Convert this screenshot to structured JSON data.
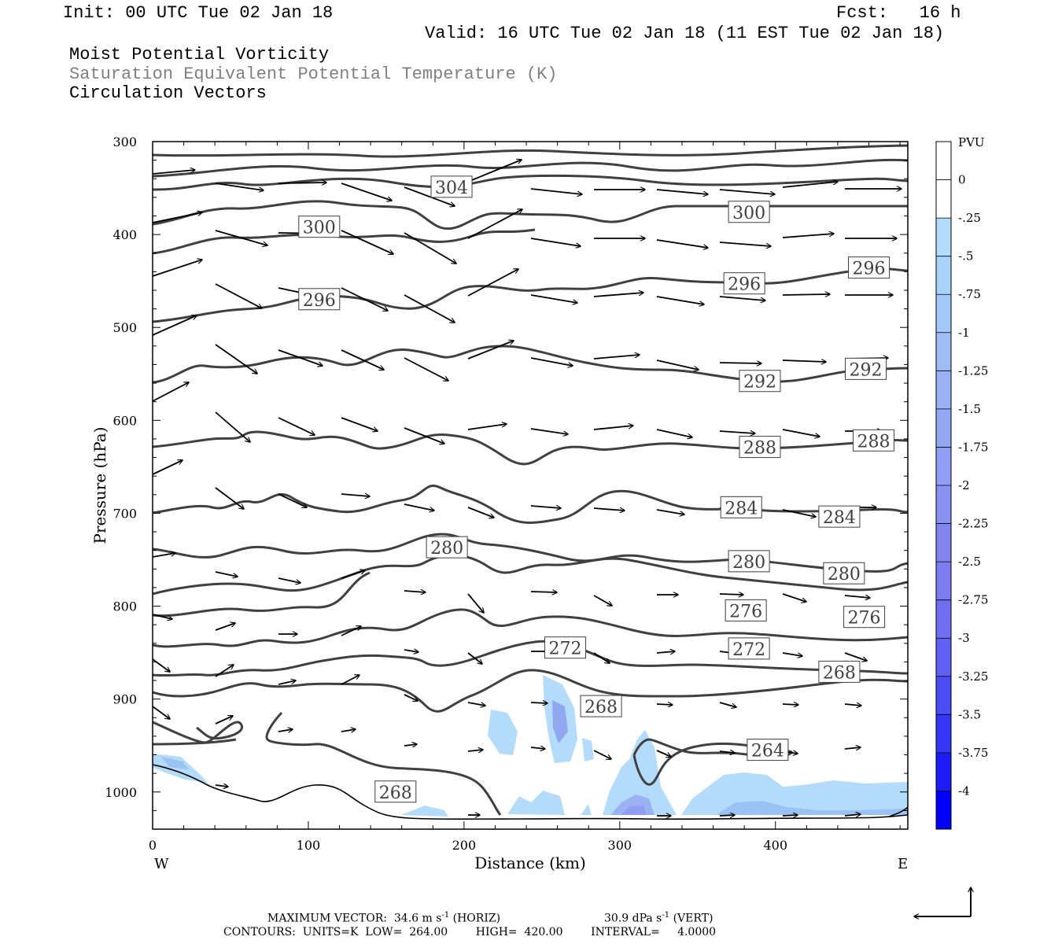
{
  "header": {
    "init": "Init: 00 UTC Tue 02 Jan 18",
    "fcst": "Fcst:   16 h",
    "valid": "Valid: 16 UTC Tue 02 Jan 18 (11 EST Tue 02 Jan 18)",
    "line1": "Moist Potential Vorticity",
    "line2": "Saturation Equivalent Potential Temperature (K)",
    "line3": "Circulation Vectors"
  },
  "footer": {
    "max_vector_label": "MAXIMUM VECTOR:",
    "horiz_value": "34.6 m s",
    "horiz_unit": "(HORIZ)",
    "vert_value": "30.9 dPa s",
    "vert_unit": "(VERT)",
    "exponent": "-1",
    "contours": "CONTOURS:  UNITS=K  LOW=  264.00        HIGH=  420.00        INTERVAL=     4.0000"
  },
  "colors": {
    "contour": "#404040",
    "arrow": "#000000",
    "pv_light": "#b4dcfa",
    "pv_mid": "#9ac3f5",
    "pv_dark": "#8fa8f0"
  },
  "chart_data": {
    "type": "contour",
    "xlabel": "Distance (km)",
    "ylabel": "Pressure (hPa)",
    "xlim": [
      0,
      485
    ],
    "ylim": [
      1040,
      300
    ],
    "x_ticks": [
      0,
      100,
      200,
      300,
      400
    ],
    "y_ticks": [
      300,
      400,
      500,
      600,
      700,
      800,
      900,
      1000
    ],
    "x_left_label": "W",
    "x_right_label": "E",
    "colorbar": {
      "title": "PVU",
      "labels": [
        "0",
        "-.25",
        "-.5",
        "-.75",
        "-1",
        "-1.25",
        "-1.5",
        "-1.75",
        "-2",
        "-2.25",
        "-2.5",
        "-2.75",
        "-3",
        "-3.25",
        "-3.5",
        "-3.75",
        "-4"
      ],
      "colors": [
        "#ffffff",
        "#ffffff",
        "#b4dcfa",
        "#a8d3f8",
        "#a4c8f6",
        "#9fbdf5",
        "#9ab2f4",
        "#95a8f3",
        "#8f9df2",
        "#8a92f1",
        "#8287f0",
        "#7a7cef",
        "#6f6ff0",
        "#6060f2",
        "#4c4cf4",
        "#3636f6",
        "#1c1cf9",
        "#0000fc"
      ]
    },
    "contour_labels": [
      {
        "value": "304",
        "x": 192,
        "p": 349
      },
      {
        "value": "300",
        "x": 107,
        "p": 392
      },
      {
        "value": "300",
        "x": 383,
        "p": 376
      },
      {
        "value": "296",
        "x": 107,
        "p": 470
      },
      {
        "value": "296",
        "x": 380,
        "p": 453
      },
      {
        "value": "296",
        "x": 460,
        "p": 436
      },
      {
        "value": "292",
        "x": 390,
        "p": 558
      },
      {
        "value": "292",
        "x": 458,
        "p": 545
      },
      {
        "value": "288",
        "x": 390,
        "p": 629
      },
      {
        "value": "288",
        "x": 463,
        "p": 622
      },
      {
        "value": "284",
        "x": 378,
        "p": 694
      },
      {
        "value": "284",
        "x": 441,
        "p": 704
      },
      {
        "value": "280",
        "x": 189,
        "p": 737
      },
      {
        "value": "280",
        "x": 383,
        "p": 752
      },
      {
        "value": "280",
        "x": 444,
        "p": 765
      },
      {
        "value": "276",
        "x": 381,
        "p": 805
      },
      {
        "value": "276",
        "x": 457,
        "p": 812
      },
      {
        "value": "272",
        "x": 265,
        "p": 845
      },
      {
        "value": "272",
        "x": 383,
        "p": 846
      },
      {
        "value": "268",
        "x": 441,
        "p": 871
      },
      {
        "value": "268",
        "x": 288,
        "p": 908
      },
      {
        "value": "264",
        "x": 395,
        "p": 955
      },
      {
        "value": "268",
        "x": 156,
        "p": 1000
      }
    ]
  }
}
